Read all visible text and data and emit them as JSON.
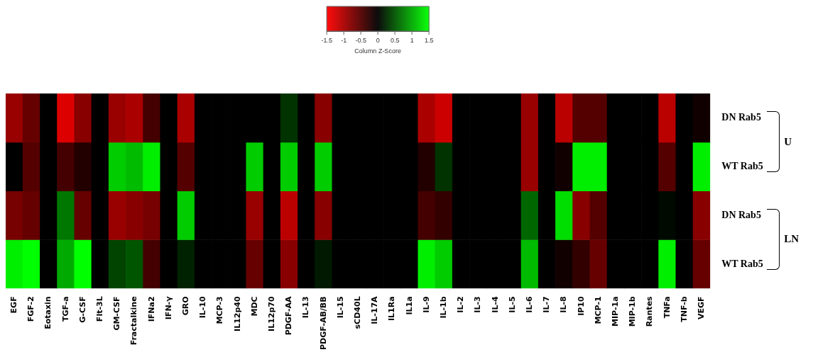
{
  "chart_data": {
    "type": "heatmap",
    "categories": [
      "EGF",
      "FGF-2",
      "Eotaxin",
      "TGF-a",
      "G-CSF",
      "Flt-3L",
      "GM-CSF",
      "Fractalkine",
      "IFNa2",
      "IFN-γ",
      "GRO",
      "IL-10",
      "MCP-3",
      "IL12p40",
      "MDC",
      "IL12p70",
      "PDGF-AA",
      "IL-13",
      "PDGF-AB/BB",
      "IL-15",
      "sCD40L",
      "IL-17A",
      "IL1Ra",
      "IL1a",
      "IL-9",
      "IL-1b",
      "IL-2",
      "IL-3",
      "IL-4",
      "IL-5",
      "IL-6",
      "IL-7",
      "IL-8",
      "IP10",
      "MCP-1",
      "MIP-1a",
      "MIP-1b",
      "Rantes",
      "TNFa",
      "TNF-b",
      "VEGF"
    ],
    "y_categories": [
      "DN Rab5",
      "WT Rab5",
      "DN Rab5",
      "WT Rab5"
    ],
    "cells": [
      [
        -0.9,
        -0.6,
        0,
        -1.3,
        -0.8,
        0,
        -0.9,
        -1.0,
        -0.4,
        0,
        -1.0,
        0,
        0,
        0,
        0,
        0,
        0.3,
        0,
        -0.8,
        0,
        0,
        0,
        0,
        0,
        -1.0,
        -1.2,
        0,
        0,
        0,
        0,
        -0.9,
        0,
        -1.1,
        -0.5,
        -0.5,
        0,
        0,
        0,
        -1.1,
        0,
        -0.1
      ],
      [
        0,
        -0.5,
        0,
        -0.4,
        -0.2,
        0,
        1.2,
        1.1,
        1.4,
        0,
        -0.5,
        0,
        0,
        0,
        1.2,
        0,
        1.2,
        0,
        1.2,
        0,
        0,
        0,
        0,
        0,
        -0.2,
        0.3,
        0,
        0,
        0,
        0,
        -0.9,
        0,
        -0.1,
        1.4,
        1.4,
        0,
        0,
        0,
        -0.5,
        0,
        1.4
      ],
      [
        -0.7,
        -0.6,
        0,
        0.7,
        -0.6,
        0,
        -0.9,
        -0.8,
        -0.7,
        0,
        1.2,
        0,
        0,
        0,
        -0.9,
        0,
        -1.1,
        0,
        -0.8,
        0,
        0,
        0,
        0,
        0,
        -0.4,
        -0.3,
        0,
        0,
        0,
        0,
        0.6,
        0,
        1.3,
        -0.8,
        -0.5,
        0,
        0,
        0,
        0.05,
        0,
        -0.8
      ],
      [
        1.4,
        1.5,
        0,
        1.0,
        1.5,
        0,
        0.4,
        0.5,
        -0.4,
        0,
        0.2,
        0,
        0,
        0,
        -0.6,
        0,
        -0.8,
        0,
        0.15,
        0,
        0,
        0,
        0,
        0,
        1.4,
        1.2,
        0,
        0,
        0,
        0,
        1.1,
        0,
        -0.1,
        -0.3,
        -0.6,
        0,
        0,
        0,
        1.4,
        0,
        -0.6
      ]
    ],
    "clim": [
      -1.5,
      1.5
    ],
    "cticks": [
      -1.5,
      -1,
      -0.5,
      0,
      0.5,
      1,
      1.5
    ],
    "clabel": "Column Z-Score",
    "annotations": [
      "U",
      "LN"
    ]
  }
}
